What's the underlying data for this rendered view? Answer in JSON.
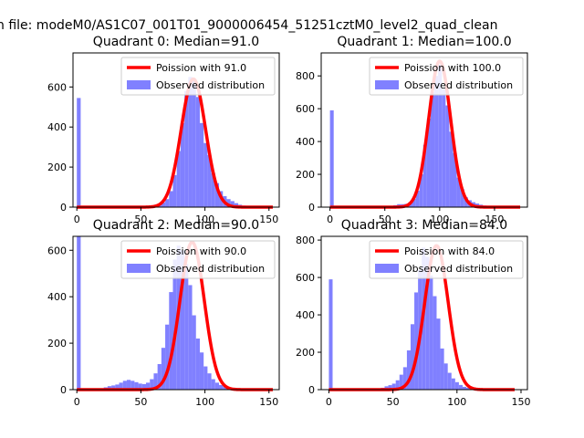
{
  "figure": {
    "suptitle": "n file: modeM0/AS1C07_001T01_9000006454_51251cztM0_level2_quad_clean"
  },
  "legend": {
    "observed_label": "Observed distribution"
  },
  "colors": {
    "poisson_line": "#ff0000",
    "observed_bars": "#8080ff",
    "axes": "#000000"
  },
  "chart_data": [
    {
      "type": "bar",
      "title": "Quadrant 0: Median=91.0",
      "poisson_label": "Poission with 91.0",
      "poisson_mean": 91.0,
      "poisson_peak": 640,
      "xlim": [
        -3,
        158
      ],
      "ylim": [
        0,
        770
      ],
      "xticks": [
        0,
        50,
        100,
        150
      ],
      "yticks": [
        0,
        200,
        400,
        600
      ],
      "bin_start": 0,
      "bin_width": 3,
      "bars": [
        545,
        0,
        0,
        0,
        0,
        0,
        0,
        0,
        0,
        0,
        0,
        0,
        0,
        0,
        0,
        0,
        2,
        4,
        6,
        8,
        12,
        16,
        24,
        40,
        80,
        160,
        280,
        420,
        580,
        650,
        630,
        550,
        420,
        320,
        260,
        170,
        120,
        80,
        55,
        40,
        30,
        20,
        12,
        8,
        5,
        3,
        2,
        1,
        1,
        1,
        0
      ]
    },
    {
      "type": "bar",
      "title": "Quadrant 1: Median=100.0",
      "poisson_label": "Poission with 100.0",
      "poisson_mean": 100.0,
      "poisson_peak": 890,
      "xlim": [
        -8,
        180
      ],
      "ylim": [
        0,
        940
      ],
      "xticks": [
        0,
        50,
        100,
        150
      ],
      "yticks": [
        0,
        200,
        400,
        600,
        800
      ],
      "bin_start": 0,
      "bin_width": 3.4,
      "bars": [
        590,
        0,
        0,
        0,
        0,
        0,
        0,
        0,
        0,
        0,
        0,
        0,
        0,
        0,
        0,
        2,
        6,
        12,
        18,
        18,
        20,
        30,
        50,
        100,
        200,
        380,
        540,
        700,
        800,
        870,
        720,
        620,
        460,
        330,
        180,
        110,
        60,
        42,
        30,
        22,
        15,
        10,
        6,
        4,
        3,
        2,
        1,
        1,
        1,
        0,
        0
      ]
    },
    {
      "type": "bar",
      "title": "Quadrant 2: Median=90.0",
      "poisson_label": "Poission with 90.0",
      "poisson_mean": 90.0,
      "poisson_peak": 635,
      "xlim": [
        -3,
        158
      ],
      "ylim": [
        0,
        660
      ],
      "xticks": [
        0,
        50,
        100,
        150
      ],
      "yticks": [
        0,
        200,
        400,
        600
      ],
      "bin_start": 0,
      "bin_width": 3,
      "bars": [
        660,
        0,
        0,
        0,
        0,
        0,
        5,
        10,
        15,
        18,
        22,
        30,
        38,
        42,
        38,
        32,
        26,
        24,
        30,
        45,
        70,
        110,
        180,
        280,
        420,
        560,
        620,
        600,
        540,
        450,
        320,
        220,
        160,
        100,
        70,
        45,
        30,
        20,
        14,
        10,
        6,
        4,
        3,
        2,
        1,
        1,
        1,
        0,
        0,
        0,
        0
      ]
    },
    {
      "type": "bar",
      "title": "Quadrant 3: Median=84.0",
      "poisson_label": "Poission with 84.0",
      "poisson_mean": 84.0,
      "poisson_peak": 770,
      "xlim": [
        -6,
        155
      ],
      "ylim": [
        0,
        820
      ],
      "xticks": [
        0,
        50,
        100,
        150
      ],
      "yticks": [
        0,
        200,
        400,
        600,
        800
      ],
      "bin_start": 0,
      "bin_width": 2.9,
      "bars": [
        590,
        0,
        0,
        0,
        0,
        0,
        0,
        0,
        0,
        0,
        0,
        0,
        0,
        4,
        10,
        18,
        24,
        32,
        50,
        80,
        120,
        210,
        350,
        520,
        640,
        760,
        710,
        610,
        500,
        380,
        220,
        140,
        90,
        60,
        40,
        25,
        15,
        10,
        6,
        4,
        3,
        2,
        1,
        1,
        1,
        0,
        0,
        0,
        0,
        0
      ]
    }
  ]
}
